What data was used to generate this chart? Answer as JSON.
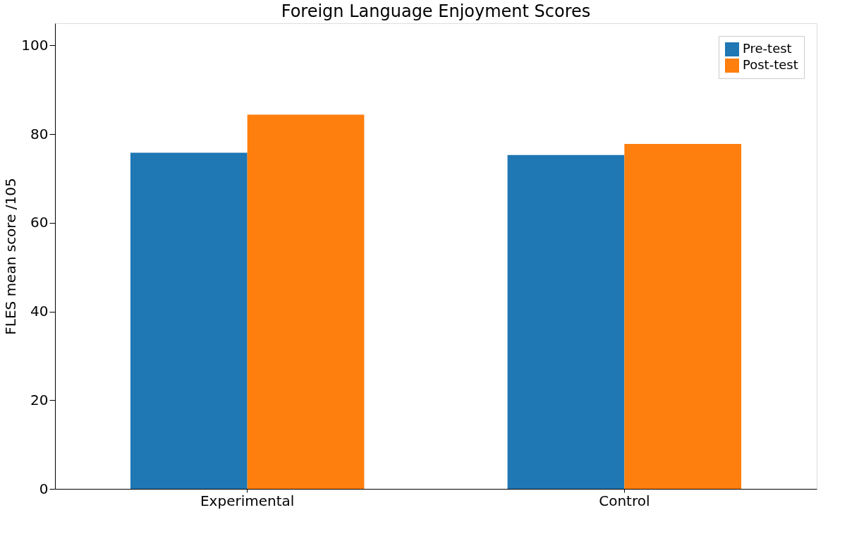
{
  "chart_data": {
    "type": "bar",
    "title": "Foreign Language Enjoyment Scores",
    "ylabel": "FLES mean score /105",
    "categories": [
      "Experimental",
      "Control"
    ],
    "series": [
      {
        "name": "Pre-test",
        "color": "#1f77b4",
        "values": [
          75.8,
          75.3
        ]
      },
      {
        "name": "Post-test",
        "color": "#ff7f0e",
        "values": [
          84.4,
          77.8
        ]
      }
    ],
    "ylim": [
      0,
      105
    ],
    "yticks": [
      0,
      20,
      40,
      60,
      80,
      100
    ],
    "grid": false,
    "legend": "top right"
  }
}
